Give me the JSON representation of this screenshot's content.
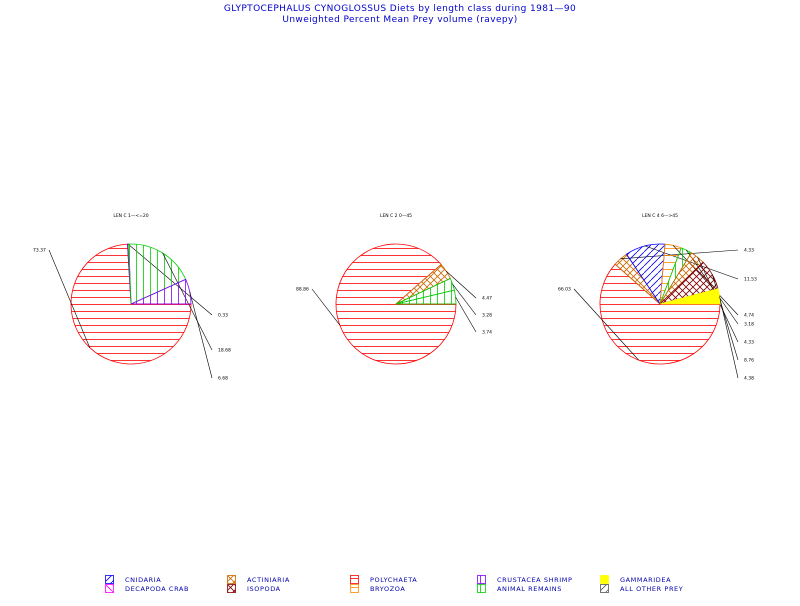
{
  "title": {
    "line1": "GLYPTOCEPHALUS CYNOGLOSSUS Diets by length class during 1981—90",
    "line2": "Unweighted Percent Mean Prey volume (ravepy)"
  },
  "colors": {
    "title": "#0000cc",
    "polychaeta": "#ff0000",
    "crustacea_shrimp": "#8000ff",
    "animal_remains": "#00cc00",
    "gammaridea": "#ffff00",
    "cnidaria": "#0000ff",
    "decapoda_crab": "#ff00ff",
    "actiniaria": "#cc6600",
    "isopoda": "#800000",
    "bryozoa": "#ff8800",
    "all_other": "#555555"
  },
  "chart_data": [
    {
      "type": "pie",
      "title": "LEN C 1—<=20",
      "slices": [
        {
          "category": "POLYCHAETA",
          "value": 73.37,
          "label": "73.37"
        },
        {
          "category": "CRUSTACEA SHRIMP",
          "value": 0.33,
          "label": "0.33"
        },
        {
          "category": "ANIMAL REMAINS",
          "value": 18.68,
          "label": "18.68"
        },
        {
          "category": "CRUSTACEA SHRIMP",
          "value": 6.68,
          "label": "6.68"
        }
      ]
    },
    {
      "type": "pie",
      "title": "LEN C 2 0—45",
      "slices": [
        {
          "category": "POLYCHAETA",
          "value": 88.86,
          "label": "88.86"
        },
        {
          "category": "ACTINIARIA",
          "value": 4.47,
          "label": "4.47"
        },
        {
          "category": "ANIMAL REMAINS",
          "value": 3.28,
          "label": "3.28"
        },
        {
          "category": "ANIMAL REMAINS",
          "value": 3.74,
          "label": "3.74"
        }
      ]
    },
    {
      "type": "pie",
      "title": "LEN C 4 6—>45",
      "slices": [
        {
          "category": "POLYCHAETA",
          "value": 66.03,
          "label": "66.03"
        },
        {
          "category": "ACTINIARIA",
          "value": 4.33,
          "label": "4.33"
        },
        {
          "category": "CNIDARIA",
          "value": 11.53,
          "label": "11.53"
        },
        {
          "category": "BRYOZOA",
          "value": 4.74,
          "label": "4.74"
        },
        {
          "category": "ANIMAL REMAINS",
          "value": 3.18,
          "label": "3.18"
        },
        {
          "category": "ACTINIARIA",
          "value": 4.33,
          "label": "4.33"
        },
        {
          "category": "ISOPODA",
          "value": 8.76,
          "label": "8.76"
        },
        {
          "category": "GAMMARIDEA",
          "value": 4.38,
          "label": "4.38"
        }
      ]
    }
  ],
  "legend": [
    {
      "key": "cnidaria",
      "label": "CNIDARIA"
    },
    {
      "key": "decapoda_crab",
      "label": "DECAPODA CRAB"
    },
    {
      "key": "actiniaria",
      "label": "ACTINIARIA"
    },
    {
      "key": "isopoda",
      "label": "ISOPODA"
    },
    {
      "key": "polychaeta",
      "label": "POLYCHAETA"
    },
    {
      "key": "bryozoa",
      "label": "BRYOZOA"
    },
    {
      "key": "crustacea_shrimp",
      "label": "CRUSTACEA SHRIMP"
    },
    {
      "key": "animal_remains",
      "label": "ANIMAL REMAINS"
    },
    {
      "key": "gammaridea",
      "label": "GAMMARIDEA"
    },
    {
      "key": "all_other",
      "label": "ALL OTHER PREY"
    }
  ]
}
